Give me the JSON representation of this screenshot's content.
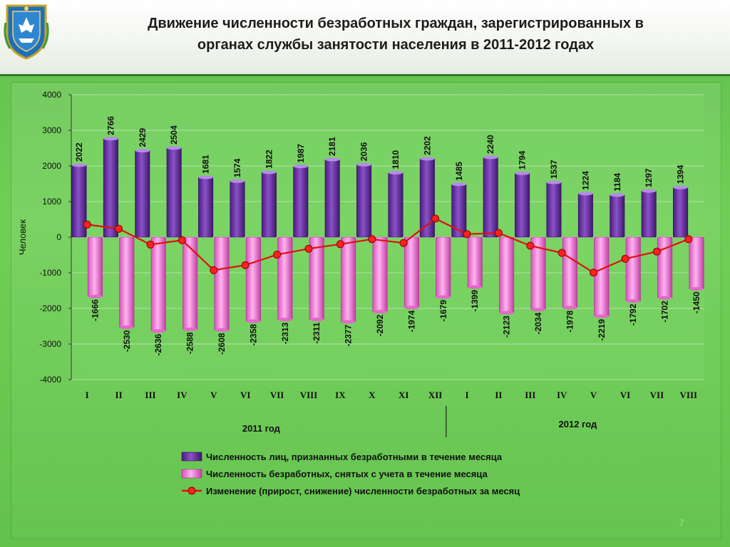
{
  "header": {
    "title_line1": "Движение численности безработных граждан, зарегистрированных в",
    "title_line2": "органах службы занятости населения в 2011-2012 годах"
  },
  "page_number": "7",
  "colors": {
    "registered_bar": "#6a2fa3",
    "deregistered_bar": "#f07ad8",
    "change_line": "#e01010"
  },
  "chart_data": {
    "type": "bar",
    "ylabel": "Человек",
    "ylim": [
      -4000,
      4000
    ],
    "yticks": [
      4000,
      3000,
      2000,
      1000,
      0,
      -1000,
      -2000,
      -3000,
      -4000
    ],
    "grid": true,
    "legend_position": "bottom",
    "categories": [
      "I",
      "II",
      "III",
      "IV",
      "V",
      "VI",
      "VII",
      "VIII",
      "IX",
      "X",
      "XI",
      "XII",
      "I",
      "II",
      "III",
      "IV",
      "V",
      "VI",
      "VII",
      "VIII"
    ],
    "year_groups": [
      {
        "label": "2011 год",
        "start": 0,
        "end": 11
      },
      {
        "label": "2012 год",
        "start": 12,
        "end": 19
      }
    ],
    "series": [
      {
        "name": "Численность лиц, признанных безработными в течение месяца",
        "kind": "bar",
        "values": [
          2022,
          2766,
          2429,
          2504,
          1681,
          1574,
          1822,
          1987,
          2181,
          2036,
          1810,
          2202,
          1485,
          2240,
          1794,
          1537,
          1224,
          1184,
          1297,
          1394
        ]
      },
      {
        "name": "Численность безработных, снятых с учета в течение месяца",
        "kind": "bar",
        "values": [
          -1666,
          -2530,
          -2636,
          -2588,
          -2608,
          -2358,
          -2313,
          -2311,
          -2377,
          -2092,
          -1974,
          -1679,
          -1399,
          -2123,
          -2034,
          -1978,
          -2219,
          -1792,
          -1702,
          -1450
        ]
      },
      {
        "name": "Изменение (прирост, снижение) численности безработных за месяц",
        "kind": "line",
        "values": [
          356,
          236,
          -207,
          -84,
          -927,
          -784,
          -491,
          -324,
          -196,
          -56,
          -164,
          523,
          86,
          117,
          -240,
          -441,
          -995,
          -608,
          -405,
          -56
        ]
      }
    ]
  }
}
